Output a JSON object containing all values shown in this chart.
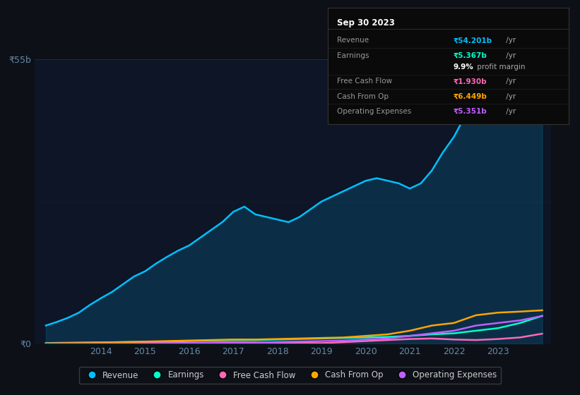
{
  "background_color": "#0d1117",
  "chart_bg": "#0d1526",
  "title": "Sep 30 2023",
  "y_label_top": "₹55b",
  "y_label_bottom": "₹0",
  "ylim": [
    0,
    55
  ],
  "xlim": [
    2012.5,
    2024.2
  ],
  "series": {
    "Revenue": {
      "color": "#00bfff",
      "values_x": [
        2012.75,
        2013.0,
        2013.25,
        2013.5,
        2013.75,
        2014.0,
        2014.25,
        2014.5,
        2014.75,
        2015.0,
        2015.25,
        2015.5,
        2015.75,
        2016.0,
        2016.25,
        2016.5,
        2016.75,
        2017.0,
        2017.25,
        2017.5,
        2017.75,
        2018.0,
        2018.25,
        2018.5,
        2018.75,
        2019.0,
        2019.25,
        2019.5,
        2019.75,
        2020.0,
        2020.25,
        2020.5,
        2020.75,
        2021.0,
        2021.25,
        2021.5,
        2021.75,
        2022.0,
        2022.25,
        2022.5,
        2022.75,
        2023.0,
        2023.25,
        2023.5,
        2023.75,
        2024.0
      ],
      "values_y": [
        3.5,
        4.2,
        5.0,
        6.0,
        7.5,
        8.8,
        10.0,
        11.5,
        13.0,
        14.0,
        15.5,
        16.8,
        18.0,
        19.0,
        20.5,
        22.0,
        23.5,
        25.5,
        26.5,
        25.0,
        24.5,
        24.0,
        23.5,
        24.5,
        26.0,
        27.5,
        28.5,
        29.5,
        30.5,
        31.5,
        32.0,
        31.5,
        31.0,
        30.0,
        31.0,
        33.5,
        37.0,
        40.0,
        44.0,
        47.0,
        50.0,
        52.0,
        53.0,
        53.5,
        54.0,
        54.201
      ]
    },
    "Earnings": {
      "color": "#00ffcc",
      "values_x": [
        2012.75,
        2013.0,
        2013.5,
        2014.0,
        2014.5,
        2015.0,
        2015.5,
        2016.0,
        2016.5,
        2017.0,
        2017.5,
        2018.0,
        2018.5,
        2019.0,
        2019.5,
        2020.0,
        2020.5,
        2021.0,
        2021.5,
        2022.0,
        2022.5,
        2023.0,
        2023.5,
        2024.0
      ],
      "values_y": [
        0.1,
        0.15,
        0.2,
        0.25,
        0.3,
        0.35,
        0.4,
        0.5,
        0.6,
        0.7,
        0.7,
        0.8,
        0.9,
        1.0,
        1.1,
        1.2,
        1.3,
        1.5,
        1.8,
        2.0,
        2.5,
        3.0,
        4.0,
        5.367
      ]
    },
    "Free Cash Flow": {
      "color": "#ff69b4",
      "values_x": [
        2012.75,
        2013.0,
        2013.5,
        2014.0,
        2014.5,
        2015.0,
        2015.5,
        2016.0,
        2016.5,
        2017.0,
        2017.5,
        2018.0,
        2018.5,
        2019.0,
        2019.5,
        2020.0,
        2020.5,
        2021.0,
        2021.5,
        2022.0,
        2022.5,
        2023.0,
        2023.5,
        2024.0
      ],
      "values_y": [
        -0.05,
        -0.02,
        0.0,
        0.05,
        0.1,
        0.15,
        0.1,
        0.15,
        0.2,
        0.3,
        0.25,
        0.2,
        0.15,
        0.1,
        0.3,
        0.5,
        0.7,
        0.9,
        1.0,
        0.8,
        0.7,
        0.9,
        1.2,
        1.93
      ]
    },
    "Cash From Op": {
      "color": "#ffa500",
      "values_x": [
        2012.75,
        2013.0,
        2013.5,
        2014.0,
        2014.5,
        2015.0,
        2015.5,
        2016.0,
        2016.5,
        2017.0,
        2017.5,
        2018.0,
        2018.5,
        2019.0,
        2019.5,
        2020.0,
        2020.5,
        2021.0,
        2021.5,
        2022.0,
        2022.5,
        2023.0,
        2023.5,
        2024.0
      ],
      "values_y": [
        0.05,
        0.1,
        0.15,
        0.2,
        0.3,
        0.4,
        0.5,
        0.6,
        0.7,
        0.8,
        0.8,
        0.9,
        1.0,
        1.1,
        1.2,
        1.5,
        1.8,
        2.5,
        3.5,
        4.0,
        5.5,
        6.0,
        6.2,
        6.449
      ]
    },
    "Operating Expenses": {
      "color": "#bf5fff",
      "values_x": [
        2012.75,
        2013.0,
        2013.5,
        2014.0,
        2014.5,
        2015.0,
        2015.5,
        2016.0,
        2016.5,
        2017.0,
        2017.5,
        2018.0,
        2018.5,
        2019.0,
        2019.5,
        2020.0,
        2020.5,
        2021.0,
        2021.5,
        2022.0,
        2022.5,
        2023.0,
        2023.5,
        2024.0
      ],
      "values_y": [
        0.0,
        0.0,
        0.0,
        0.0,
        0.0,
        0.0,
        0.05,
        0.1,
        0.15,
        0.2,
        0.2,
        0.3,
        0.4,
        0.5,
        0.6,
        0.8,
        1.0,
        1.5,
        2.0,
        2.5,
        3.5,
        4.0,
        4.5,
        5.351
      ]
    }
  },
  "tooltip": {
    "title": "Sep 30 2023",
    "bg_color": "#0a0a0a",
    "border_color": "#333333",
    "title_color": "#ffffff",
    "rows": [
      {
        "label": "Revenue",
        "value_bold": "₹54.201b",
        "value_suffix": " /yr",
        "value_color": "#00bfff",
        "is_margin": false
      },
      {
        "label": "Earnings",
        "value_bold": "₹5.367b",
        "value_suffix": " /yr",
        "value_color": "#00ffcc",
        "is_margin": false
      },
      {
        "label": "",
        "value_bold": "9.9%",
        "value_suffix": " profit margin",
        "value_color": "#ffffff",
        "is_margin": true
      },
      {
        "label": "Free Cash Flow",
        "value_bold": "₹1.930b",
        "value_suffix": " /yr",
        "value_color": "#ff69b4",
        "is_margin": false
      },
      {
        "label": "Cash From Op",
        "value_bold": "₹6.449b",
        "value_suffix": " /yr",
        "value_color": "#ffa500",
        "is_margin": false
      },
      {
        "label": "Operating Expenses",
        "value_bold": "₹5.351b",
        "value_suffix": " /yr",
        "value_color": "#bf5fff",
        "is_margin": false
      }
    ]
  },
  "legend": [
    {
      "label": "Revenue",
      "color": "#00bfff"
    },
    {
      "label": "Earnings",
      "color": "#00ffcc"
    },
    {
      "label": "Free Cash Flow",
      "color": "#ff69b4"
    },
    {
      "label": "Cash From Op",
      "color": "#ffa500"
    },
    {
      "label": "Operating Expenses",
      "color": "#bf5fff"
    }
  ],
  "grid_color": "#1e2a3a",
  "tick_color": "#6688aa"
}
